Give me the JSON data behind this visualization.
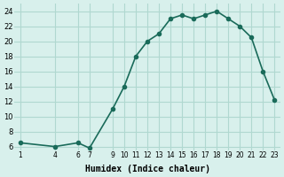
{
  "x": [
    1,
    4,
    6,
    7,
    9,
    10,
    11,
    12,
    13,
    14,
    15,
    16,
    17,
    18,
    19,
    20,
    21,
    22,
    23
  ],
  "y": [
    6.5,
    6.0,
    6.5,
    5.8,
    11.0,
    14.0,
    18.0,
    20.0,
    21.0,
    23.0,
    23.5,
    23.0,
    23.5,
    24.0,
    23.0,
    22.0,
    20.5,
    16.0,
    12.2
  ],
  "xticks": [
    1,
    4,
    6,
    7,
    9,
    10,
    11,
    12,
    13,
    14,
    15,
    16,
    17,
    18,
    19,
    20,
    21,
    22,
    23
  ],
  "yticks": [
    6,
    8,
    10,
    12,
    14,
    16,
    18,
    20,
    22,
    24
  ],
  "ylim": [
    5.5,
    25.0
  ],
  "xlim": [
    0.5,
    23.5
  ],
  "xlabel": "Humidex (Indice chaleur)",
  "line_color": "#1a6b5a",
  "marker": "o",
  "marker_size": 3,
  "bg_color": "#d8f0ec",
  "grid_color": "#b0d8d0"
}
